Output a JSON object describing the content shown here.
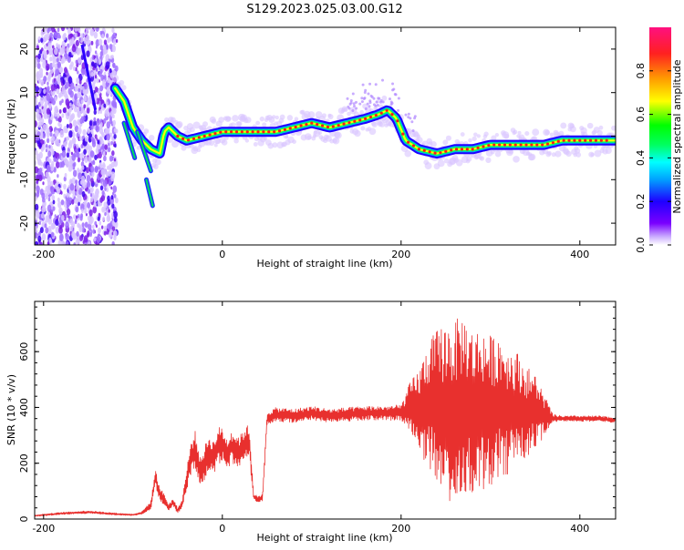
{
  "title": "S129.2023.025.03.00.G12",
  "colors": {
    "snr_line": "#e8302e",
    "axis": "#000000",
    "ridge_core": "#ff1a1a",
    "ridge_mid": "#00e050",
    "ridge_edge": "#2030ff",
    "noise": "#7a1ee8"
  },
  "chart_data": [
    {
      "type": "heatmap",
      "xlabel": "Height of straight line (km)",
      "ylabel": "Frequency (Hz)",
      "xlim": [
        -210,
        440
      ],
      "ylim": [
        -25,
        25
      ],
      "x_ticks": [
        -200,
        0,
        200,
        400
      ],
      "y_ticks": [
        -20,
        -10,
        0,
        10,
        20
      ],
      "grid": false,
      "colorbar": {
        "label": "Normalized spectral amplitude",
        "range": [
          0,
          1
        ],
        "ticks": [
          0.0,
          0.2,
          0.4,
          0.6,
          0.8
        ],
        "colormap": [
          "#ffffff",
          "#c8a8ff",
          "#7a00ff",
          "#1f00ff",
          "#00a0ff",
          "#00ffff",
          "#00ff60",
          "#00ff00",
          "#ffff00",
          "#ffa000",
          "#ff2020",
          "#ff1080"
        ]
      },
      "ridge": {
        "x": [
          -120,
          -110,
          -100,
          -90,
          -80,
          -70,
          -65,
          -60,
          -50,
          -40,
          -20,
          0,
          20,
          40,
          60,
          80,
          100,
          120,
          140,
          160,
          175,
          185,
          195,
          205,
          220,
          240,
          260,
          280,
          300,
          320,
          340,
          360,
          380,
          400,
          420,
          440
        ],
        "y": [
          11,
          8,
          2,
          -1,
          -3,
          -4,
          1,
          2,
          0,
          -1,
          0,
          1,
          1,
          1,
          1,
          2,
          3,
          2,
          3,
          4,
          5,
          6,
          4,
          -1,
          -3,
          -4,
          -3,
          -3,
          -2,
          -2,
          -2,
          -2,
          -1,
          -1,
          -1,
          -1
        ]
      },
      "noise_region_x": [
        -210,
        -118
      ]
    },
    {
      "type": "line",
      "xlabel": "Height of straight line (km)",
      "ylabel": "SNR (10 * v/v)",
      "xlim": [
        -210,
        440
      ],
      "ylim": [
        0,
        780
      ],
      "x_ticks": [
        -200,
        0,
        200,
        400
      ],
      "y_ticks": [
        0,
        200,
        400,
        600
      ],
      "grid": false,
      "series": [
        {
          "x": [
            -210,
            -180,
            -150,
            -120,
            -100,
            -90,
            -80,
            -75,
            -70,
            -65,
            -60,
            -55,
            -50,
            -45,
            -40,
            -35,
            -30,
            -25,
            -20,
            -15,
            -10,
            -5,
            0,
            5,
            10,
            15,
            20,
            25,
            30,
            35,
            40,
            45,
            50,
            60,
            80,
            100,
            120,
            140,
            160,
            180,
            200,
            210,
            220,
            230,
            240,
            250,
            260,
            270,
            280,
            290,
            300,
            310,
            320,
            330,
            340,
            350,
            360,
            370,
            380,
            400,
            420,
            440
          ],
          "y": [
            12,
            20,
            25,
            18,
            15,
            22,
            50,
            150,
            90,
            70,
            40,
            60,
            30,
            55,
            140,
            220,
            250,
            170,
            200,
            240,
            220,
            260,
            270,
            230,
            260,
            250,
            240,
            270,
            280,
            80,
            70,
            75,
            360,
            375,
            370,
            380,
            370,
            375,
            380,
            380,
            380,
            400,
            390,
            410,
            400,
            390,
            380,
            420,
            380,
            400,
            380,
            410,
            390,
            400,
            380,
            390,
            370,
            360,
            360,
            360,
            360,
            355
          ],
          "amplitude": [
            3,
            4,
            5,
            4,
            3,
            5,
            15,
            30,
            25,
            20,
            15,
            15,
            10,
            15,
            40,
            60,
            70,
            50,
            60,
            65,
            60,
            70,
            60,
            60,
            60,
            55,
            60,
            60,
            60,
            15,
            10,
            15,
            25,
            25,
            25,
            25,
            25,
            25,
            25,
            25,
            30,
            90,
            150,
            220,
            280,
            320,
            330,
            320,
            300,
            290,
            280,
            260,
            230,
            200,
            170,
            130,
            80,
            15,
            10,
            10,
            10,
            10
          ]
        }
      ]
    }
  ]
}
